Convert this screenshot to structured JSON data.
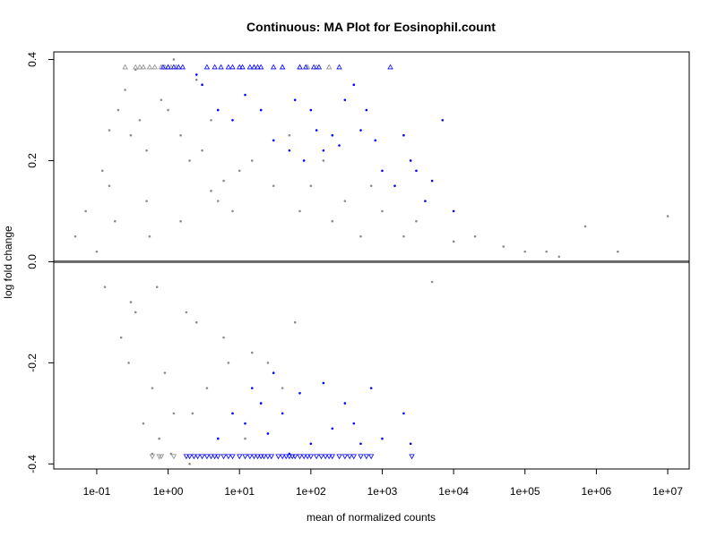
{
  "chart_data": {
    "type": "scatter",
    "title": "Continuous: MA Plot for Eosinophil.count",
    "xlabel": "mean of normalized counts",
    "ylabel": "log fold change",
    "x_scale": "log10",
    "xlim": [
      0.025,
      20000000
    ],
    "ylim": [
      -0.41,
      0.415
    ],
    "x_ticks": [
      {
        "value": 0.1,
        "label": "1e-01"
      },
      {
        "value": 1,
        "label": "1e+00"
      },
      {
        "value": 10,
        "label": "1e+01"
      },
      {
        "value": 100,
        "label": "1e+02"
      },
      {
        "value": 1000,
        "label": "1e+03"
      },
      {
        "value": 10000,
        "label": "1e+04"
      },
      {
        "value": 100000,
        "label": "1e+05"
      },
      {
        "value": 1000000,
        "label": "1e+06"
      },
      {
        "value": 10000000,
        "label": "1e+07"
      }
    ],
    "y_ticks": [
      {
        "value": 0.4,
        "label": "0.4"
      },
      {
        "value": 0.2,
        "label": "0.2"
      },
      {
        "value": 0.0,
        "label": "0.0"
      },
      {
        "value": -0.2,
        "label": "-0.2"
      },
      {
        "value": -0.4,
        "label": "-0.4"
      }
    ],
    "reference_line": {
      "y": 0,
      "color": "#666666"
    },
    "colors": {
      "not_significant": "#8c8c8c",
      "significant": "#0000ff"
    },
    "grid": false,
    "series": [
      {
        "key": "not_significant",
        "marker": "dot",
        "color": "#8c8c8c",
        "x": [
          0.05,
          0.07,
          0.1,
          0.12,
          0.15,
          0.2,
          0.25,
          0.3,
          0.35,
          0.4,
          0.5,
          0.6,
          0.8,
          1.0,
          1.2,
          1.5,
          2.0,
          2.5,
          3.0,
          4.0,
          5.0,
          7.0,
          10.0,
          15.0,
          20.0,
          30.0,
          50.0,
          70.0,
          100.0,
          150.0,
          200.0,
          300.0,
          500.0,
          700.0,
          1000.0,
          2000.0,
          3000.0,
          5000.0,
          10000.0,
          20000.0,
          50000.0,
          100000.0,
          200000.0,
          300000.0,
          700000.0,
          2000000.0,
          10000000.0,
          0.13,
          0.18,
          0.22,
          0.28,
          0.45,
          0.55,
          0.75,
          0.9,
          1.1,
          1.8,
          2.2,
          3.5,
          6.0,
          8.0,
          12.0,
          25.0,
          40.0,
          60.0,
          0.15,
          0.3,
          0.5,
          0.7,
          1.5,
          2.5,
          4.0,
          6.0,
          0.35,
          0.6,
          1.2,
          2.0,
          5.0,
          8.0,
          15.0,
          30.0
        ],
        "y": [
          0.05,
          0.1,
          0.02,
          0.18,
          0.15,
          0.3,
          0.34,
          0.25,
          -0.1,
          0.28,
          0.22,
          -0.25,
          0.32,
          0.3,
          -0.3,
          0.25,
          0.2,
          0.36,
          0.22,
          0.28,
          0.12,
          -0.2,
          0.18,
          0.2,
          -0.28,
          0.15,
          0.25,
          0.1,
          0.15,
          0.2,
          0.08,
          0.12,
          0.05,
          0.15,
          0.1,
          0.05,
          0.08,
          -0.04,
          0.04,
          0.05,
          0.03,
          0.02,
          0.02,
          0.01,
          0.07,
          0.02,
          0.09,
          -0.05,
          0.08,
          -0.15,
          -0.2,
          -0.32,
          0.05,
          -0.35,
          -0.22,
          -0.38,
          -0.1,
          -0.3,
          -0.25,
          -0.15,
          -0.3,
          -0.35,
          -0.2,
          -0.25,
          -0.12,
          0.26,
          -0.08,
          0.12,
          -0.05,
          0.08,
          -0.12,
          0.14,
          0.16,
          0.38,
          -0.38,
          0.4,
          -0.4,
          -0.35,
          0.1,
          -0.18,
          -0.22
        ]
      },
      {
        "key": "significant",
        "marker": "dot",
        "color": "#0000ff",
        "x": [
          2.5,
          3.0,
          5.0,
          8.0,
          12.0,
          20.0,
          30.0,
          50.0,
          60.0,
          80.0,
          100.0,
          120.0,
          150.0,
          200.0,
          250.0,
          300.0,
          400.0,
          500.0,
          600.0,
          800.0,
          1000.0,
          1500.0,
          2000.0,
          2500.0,
          3000.0,
          4000.0,
          5000.0,
          7000.0,
          10000.0,
          5.0,
          8.0,
          12.0,
          15.0,
          20.0,
          25.0,
          30.0,
          40.0,
          50.0,
          70.0,
          100.0,
          150.0,
          200.0,
          300.0,
          400.0,
          500.0,
          700.0,
          1000.0,
          2000.0,
          2500.0
        ],
        "y": [
          0.37,
          0.35,
          0.3,
          0.28,
          0.33,
          0.3,
          0.24,
          0.22,
          0.32,
          0.2,
          0.3,
          0.26,
          0.22,
          0.25,
          0.23,
          0.32,
          0.35,
          0.26,
          0.3,
          0.24,
          0.18,
          0.15,
          0.25,
          0.2,
          0.18,
          0.12,
          0.16,
          0.28,
          0.1,
          -0.35,
          -0.3,
          -0.32,
          -0.25,
          -0.28,
          -0.34,
          -0.22,
          -0.3,
          -0.38,
          -0.26,
          -0.36,
          -0.24,
          -0.33,
          -0.28,
          -0.32,
          -0.36,
          -0.25,
          -0.35,
          -0.3,
          -0.36
        ]
      },
      {
        "key": "not_significant_clipped_top",
        "marker": "triangle-up",
        "color": "#8c8c8c",
        "x": [
          0.25,
          0.35,
          0.4,
          0.45,
          0.55,
          0.65,
          0.8,
          0.9,
          1.0,
          1.1,
          1.3,
          16.0,
          40.0,
          70.0,
          90.0,
          120.0,
          180.0
        ],
        "y": [
          0.385,
          0.385,
          0.385,
          0.385,
          0.385,
          0.385,
          0.385,
          0.385,
          0.385,
          0.385,
          0.385,
          0.385,
          0.385,
          0.385,
          0.385,
          0.385,
          0.385
        ]
      },
      {
        "key": "significant_clipped_top",
        "marker": "triangle-up",
        "color": "#0000ff",
        "x": [
          0.85,
          1.0,
          1.2,
          1.4,
          1.6,
          3.5,
          4.5,
          5.5,
          7.0,
          8.0,
          10.0,
          11.0,
          14.0,
          16.0,
          18.0,
          20.0,
          30.0,
          40.0,
          70.0,
          85.0,
          110.0,
          130.0,
          250.0,
          1300.0
        ],
        "y": [
          0.385,
          0.385,
          0.385,
          0.385,
          0.385,
          0.385,
          0.385,
          0.385,
          0.385,
          0.385,
          0.385,
          0.385,
          0.385,
          0.385,
          0.385,
          0.385,
          0.385,
          0.385,
          0.385,
          0.385,
          0.385,
          0.385,
          0.385,
          0.385
        ]
      },
      {
        "key": "not_significant_clipped_bottom",
        "marker": "triangle-down",
        "color": "#8c8c8c",
        "x": [
          0.6,
          0.75,
          0.8,
          1.2
        ],
        "y": [
          -0.385,
          -0.385,
          -0.385,
          -0.385
        ]
      },
      {
        "key": "significant_clipped_bottom",
        "marker": "triangle-down",
        "color": "#0000ff",
        "x": [
          1.8,
          2.0,
          2.3,
          2.6,
          3.0,
          3.5,
          4.0,
          4.5,
          5.0,
          6.0,
          7.0,
          8.0,
          10.0,
          12.0,
          14.0,
          16.0,
          18.0,
          20.0,
          22.0,
          25.0,
          28.0,
          35.0,
          40.0,
          45.0,
          50.0,
          55.0,
          60.0,
          70.0,
          80.0,
          90.0,
          100.0,
          120.0,
          140.0,
          160.0,
          180.0,
          200.0,
          250.0,
          300.0,
          350.0,
          400.0,
          500.0,
          600.0,
          700.0,
          2600.0
        ],
        "y": [
          -0.385,
          -0.385,
          -0.385,
          -0.385,
          -0.385,
          -0.385,
          -0.385,
          -0.385,
          -0.385,
          -0.385,
          -0.385,
          -0.385,
          -0.385,
          -0.385,
          -0.385,
          -0.385,
          -0.385,
          -0.385,
          -0.385,
          -0.385,
          -0.385,
          -0.385,
          -0.385,
          -0.385,
          -0.385,
          -0.385,
          -0.385,
          -0.385,
          -0.385,
          -0.385,
          -0.385,
          -0.385,
          -0.385,
          -0.385,
          -0.385,
          -0.385,
          -0.385,
          -0.385,
          -0.385,
          -0.385,
          -0.385,
          -0.385,
          -0.385,
          -0.385
        ]
      }
    ]
  }
}
